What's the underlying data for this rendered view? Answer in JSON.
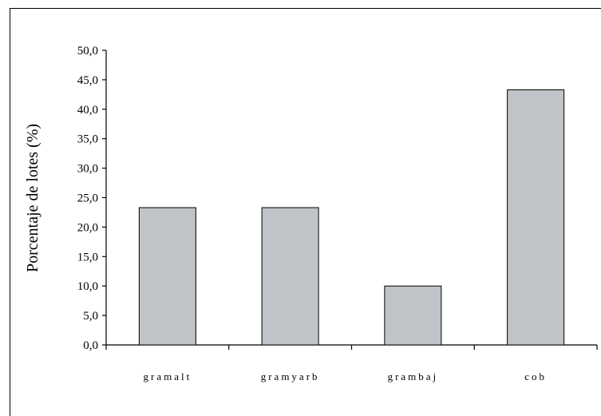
{
  "chart_data": {
    "type": "bar",
    "categories": [
      "gramalt",
      "gramyarb",
      "grambaj",
      "cob"
    ],
    "values": [
      23.3,
      23.3,
      10.0,
      43.3
    ],
    "title": "",
    "xlabel": "",
    "ylabel": "Porcentaje de lotes (%)",
    "ylim": [
      0,
      50
    ],
    "yticks": [
      "0,0",
      "5,0",
      "10,0",
      "15,0",
      "20,0",
      "25,0",
      "30,0",
      "35,0",
      "40,0",
      "45,0",
      "50,0"
    ],
    "grid": false,
    "legend": "none",
    "bar_color": "#c0c3c8",
    "bar_edge_color": "#000000"
  }
}
